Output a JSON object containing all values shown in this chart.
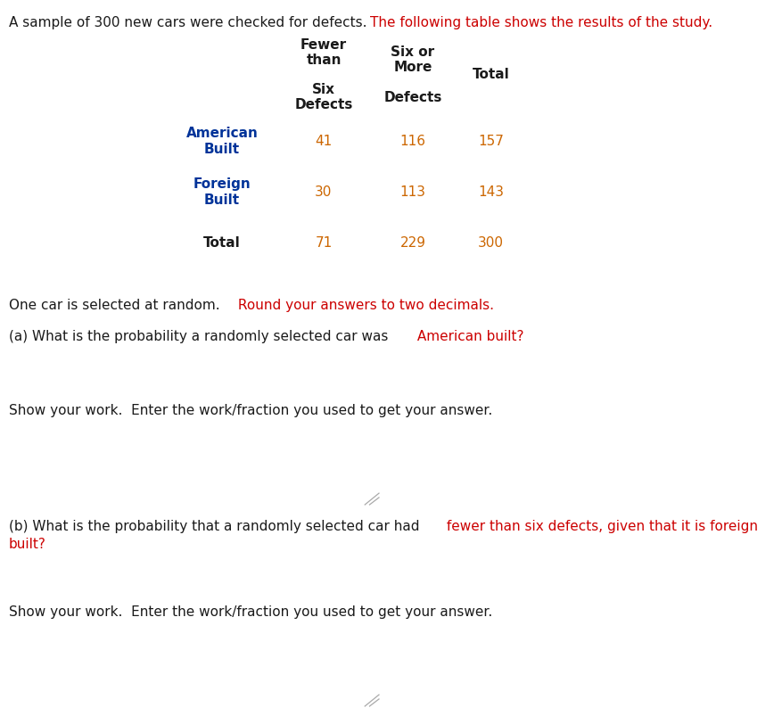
{
  "title_black": "A sample of 300 new cars were checked for defects.",
  "title_red": "The following table shows the results of the study.",
  "title_color_black": "#1a1a1a",
  "title_color_red": "#cc0000",
  "hdr1_line1": "Fewer",
  "hdr1_line2": "than",
  "hdr1_line3": "Six",
  "hdr1_line4": "Defects",
  "hdr2_line1": "Six or",
  "hdr2_line2": "More",
  "hdr2_line3": "Defects",
  "hdr3": "Total",
  "row1_label": "American\nBuilt",
  "row1_v1": "41",
  "row1_v2": "116",
  "row1_v3": "157",
  "row2_label": "Foreign\nBuilt",
  "row2_v1": "30",
  "row2_v2": "113",
  "row2_v3": "143",
  "row3_label": "Total",
  "row3_v1": "71",
  "row3_v2": "229",
  "row3_v3": "300",
  "header_color": "#1a1a1a",
  "data_color": "#cc6600",
  "label_color": "#003399",
  "total_color": "#1a1a1a",
  "question_color": "#1a1a1a",
  "highlight_color": "#cc0000",
  "bg_color": "#ffffff",
  "font_size": 11,
  "table_font_size": 11
}
